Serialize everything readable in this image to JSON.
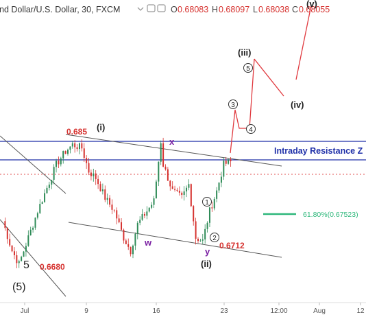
{
  "header": {
    "title": "nd Dollar/U.S. Dollar, 30, FXCM",
    "o_label": "O",
    "o_value": "0.68083",
    "h_label": "H",
    "h_value": "0.68097",
    "l_label": "L",
    "l_value": "0.68038",
    "c_label": "C",
    "c_value": "0.68055"
  },
  "colors": {
    "up": "#2e8b57",
    "down": "#d6322f",
    "resistance": "#1e2fa8",
    "fib": "#2db77a",
    "price_line": "#e05050",
    "wave_purple": "#7a1fa2"
  },
  "annotations": {
    "wave_i": "(i)",
    "wave_ii": "(ii)",
    "wave_iii": "(iii)",
    "wave_iv": "(iv)",
    "wave_v": "(v)",
    "w": "w",
    "x": "x",
    "y": "y",
    "five": "5",
    "five_paren": "(5)",
    "c1": "1",
    "c2": "2",
    "c3": "3",
    "c4": "4",
    "c5": "5",
    "level_685": "0.685",
    "level_6712": "0.6712",
    "level_6680": "0.6680",
    "resistance": "Intraday Resistance Z",
    "fib": "61.80%(0.67523)"
  },
  "chart_data": {
    "type": "candlestick",
    "title": "nd Dollar/U.S. Dollar, 30, FXCM",
    "x_ticks": [
      "Jul",
      "9",
      "16",
      "23",
      "12:00",
      "Aug",
      "12"
    ],
    "levels": {
      "resistance_upper": 0.6865,
      "resistance_lower": 0.6848,
      "current_price": 0.68055,
      "fib_618": 0.67523
    },
    "price_path": [
      [
        0,
        0.6745
      ],
      [
        3,
        0.67
      ],
      [
        5,
        0.668
      ],
      [
        8,
        0.672
      ],
      [
        11,
        0.676
      ],
      [
        14,
        0.6795
      ],
      [
        17,
        0.683
      ],
      [
        20,
        0.685
      ],
      [
        22,
        0.686
      ],
      [
        25,
        0.6855
      ],
      [
        27,
        0.682
      ],
      [
        29,
        0.681
      ],
      [
        32,
        0.678
      ],
      [
        35,
        0.676
      ],
      [
        38,
        0.672
      ],
      [
        40,
        0.67
      ],
      [
        42,
        0.674
      ],
      [
        45,
        0.676
      ],
      [
        47,
        0.6775
      ],
      [
        49,
        0.6865
      ],
      [
        50,
        0.683
      ],
      [
        53,
        0.679
      ],
      [
        56,
        0.678
      ],
      [
        58,
        0.68
      ],
      [
        60,
        0.672
      ],
      [
        62,
        0.6715
      ],
      [
        64,
        0.676
      ],
      [
        66,
        0.679
      ],
      [
        68,
        0.683
      ],
      [
        70,
        0.6835
      ]
    ],
    "projection": [
      [
        70,
        0.685
      ],
      [
        72,
        0.692
      ],
      [
        74,
        0.687
      ],
      [
        76,
        0.699
      ],
      [
        80,
        0.6935
      ],
      [
        84,
        0.7105
      ]
    ]
  }
}
